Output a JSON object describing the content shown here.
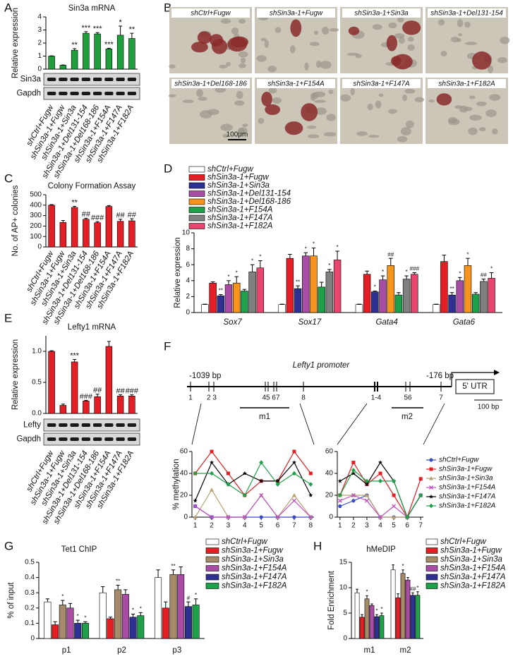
{
  "panel_letters": [
    "A",
    "B",
    "C",
    "D",
    "E",
    "F",
    "G",
    "H"
  ],
  "micrographs": {
    "labels": [
      "shCtrl+Fugw",
      "shSin3a-1+Fugw",
      "shSin3a-1+Sin3a",
      "shSin3a-1+Del131-154",
      "shSin3a-1+Del168-186",
      "shSin3a-1+F154A",
      "shSin3a-1+F147A",
      "shSin3a-1+F182A"
    ],
    "scale_bar": "100μm"
  },
  "blots": [
    {
      "labels": [
        "Sin3a",
        "Gapdh"
      ]
    },
    {
      "labels": [
        "Lefty",
        "Gapdh"
      ]
    }
  ],
  "promoter": {
    "start": "-1039 bp",
    "name": "Lefty1 promoter",
    "end": "-176 bp",
    "utr": "5' UTR",
    "sites": [
      "1",
      "2 3",
      "45 67",
      "8",
      "1-4",
      "56",
      "7"
    ],
    "regions": [
      "m1",
      "m2"
    ],
    "scale": "100 bp"
  },
  "chart_data": [
    {
      "type": "bar",
      "title": "Sin3a mRNA",
      "ylabel": "Relative expression",
      "categories": [
        "shCtrl+Fugw",
        "shSin3a-1+Fugw",
        "shSin3a-1+Sin3a",
        "shSin3a-1+Del131-154",
        "shSin3a-1+Del168-186",
        "shSin3a-1+F154A",
        "shSin3a-1+F147A",
        "shSin3a-1+F182A"
      ],
      "values": [
        1,
        0.3,
        1.45,
        2.75,
        2.7,
        1.55,
        2.6,
        2.35
      ],
      "errors": [
        0.02,
        0.02,
        0.12,
        0.12,
        0.1,
        0.05,
        0.7,
        0.4
      ],
      "sig_labels": [
        null,
        null,
        "**",
        "***",
        "***",
        "***",
        "*",
        "**"
      ],
      "color": "#1f9e3c",
      "ylim": [
        0,
        4
      ],
      "yticks": [
        0,
        1,
        2,
        3,
        4
      ]
    },
    {
      "type": "bar",
      "title": "Colony Formation Assay",
      "ylabel": "No. of AP+ colonies",
      "categories": [
        "shCtrl+Fugw",
        "shSin3a-1+Fugw",
        "shSin3a-1+Sin3a",
        "shSin3a-1+Del131-154",
        "shSin3a-1+Del168-186",
        "shSin3a-1+F154A",
        "shSin3a-1+F147A",
        "shSin3a-1+F182A"
      ],
      "values": [
        400,
        235,
        378,
        265,
        232,
        388,
        245,
        250
      ],
      "errors": [
        5,
        18,
        10,
        10,
        10,
        8,
        20,
        20
      ],
      "sig_labels": [
        null,
        null,
        "**",
        "##",
        "###",
        null,
        "##",
        "##"
      ],
      "color": "#e31e24",
      "ylim": [
        0,
        500
      ],
      "yticks": [
        0,
        100,
        200,
        300,
        400,
        500
      ]
    },
    {
      "type": "bar",
      "ylabel": "Relative expression",
      "categories": [
        "Sox7",
        "Sox17",
        "Gata4",
        "Gata6"
      ],
      "series": [
        {
          "name": "shCtrl+Fugw",
          "color": "#ffffff",
          "values": [
            1,
            1,
            1,
            1
          ],
          "errors": [
            0.05,
            0.05,
            0.05,
            0.05
          ],
          "sig_labels": [
            null,
            null,
            null,
            null
          ]
        },
        {
          "name": "shSin3a-1+Fugw",
          "color": "#e31e24",
          "values": [
            3.7,
            6.8,
            4.8,
            6.4
          ],
          "errors": [
            0.15,
            0.5,
            0.4,
            0.8
          ],
          "sig_labels": [
            null,
            null,
            null,
            null
          ]
        },
        {
          "name": "shSin3a-1+Sin3a",
          "color": "#2e3192",
          "values": [
            2.1,
            3.0,
            2.6,
            2.2
          ],
          "errors": [
            0.15,
            0.35,
            0.1,
            0.3
          ],
          "sig_labels": [
            "**",
            "**",
            "*",
            "**"
          ]
        },
        {
          "name": "shSin3a-1+Del131-154",
          "color": "#a94ca3",
          "values": [
            3.5,
            7.1,
            4.1,
            4.0
          ],
          "errors": [
            0.5,
            0.4,
            0.5,
            0.4
          ],
          "sig_labels": [
            "*",
            "*",
            "*",
            "*"
          ]
        },
        {
          "name": "shSin3a-1+Del168-186",
          "color": "#f7941d",
          "values": [
            3.7,
            7.1,
            5.9,
            5.9
          ],
          "errors": [
            0.8,
            1.0,
            0.9,
            0.9
          ],
          "sig_labels": [
            "*",
            "*",
            "##",
            "*"
          ]
        },
        {
          "name": "shSin3a-1+F154A",
          "color": "#1fa04a",
          "values": [
            2.7,
            3.2,
            2.2,
            2.3
          ],
          "errors": [
            0.2,
            0.6,
            0.3,
            0.2
          ],
          "sig_labels": [
            null,
            null,
            null,
            null
          ]
        },
        {
          "name": "shSin3a-1+F147A",
          "color": "#808080",
          "values": [
            5.1,
            5.1,
            4.2,
            3.9
          ],
          "errors": [
            0.9,
            0.3,
            0.4,
            0.3
          ],
          "sig_labels": [
            "*",
            "*",
            "*",
            "##"
          ]
        },
        {
          "name": "shSin3a-1+F182A",
          "color": "#e8466e",
          "values": [
            5.6,
            6.6,
            4.8,
            4.3
          ],
          "errors": [
            0.9,
            1.1,
            0.2,
            0.7
          ],
          "sig_labels": [
            "*",
            "*",
            "###",
            "*"
          ]
        }
      ],
      "ylim": [
        0,
        10
      ],
      "yticks": [
        0,
        2,
        4,
        6,
        8,
        10
      ]
    },
    {
      "type": "bar",
      "title": "Lefty1 mRNA",
      "ylabel": "Relative expression",
      "categories": [
        "shCtrl+Fugw",
        "shSin3a-1+Fugw",
        "shSin3a-1+Sin3a",
        "shSin3a-1+Del131-154",
        "shSin3a-1+Del168-186",
        "shSin3a-1+F154A",
        "shSin3a-1+F147A",
        "shSin3a-1+F182A"
      ],
      "values": [
        1.0,
        0.13,
        0.83,
        0.2,
        0.27,
        1.08,
        0.28,
        0.28
      ],
      "errors": [
        0.01,
        0.02,
        0.04,
        0.01,
        0.04,
        0.08,
        0.02,
        0.02
      ],
      "sig_labels": [
        null,
        null,
        "***",
        "###",
        "##",
        null,
        "##",
        "###"
      ],
      "color": "#e31e24",
      "ylim": [
        0,
        1.25
      ],
      "yticks": [
        {
          "value": 0,
          "label": "0.0"
        },
        {
          "value": 0.5,
          "label": "0.5"
        },
        {
          "value": 1,
          "label": "1.0"
        }
      ]
    },
    {
      "type": "line",
      "ylabel": "% methylation",
      "subplots": [
        {
          "x": [
            1,
            2,
            3,
            4,
            5,
            6,
            7,
            8
          ],
          "xticks": [
            1,
            2,
            3,
            4,
            5,
            6,
            7,
            8
          ],
          "xlim": [
            0.8,
            8.2
          ]
        },
        {
          "x": [
            1,
            2,
            3,
            4,
            5,
            6,
            7
          ],
          "xticks": [
            1,
            2,
            3,
            4,
            5,
            6,
            7
          ],
          "xlim": [
            0.8,
            7.2
          ]
        }
      ],
      "series": [
        {
          "name": "shCtrl+Fugw",
          "color": "#3b4cc0",
          "marker": "circle",
          "values": [
            [
              10,
              0,
              0,
              0,
              0,
              0,
              0,
              0
            ],
            [
              10,
              15,
              20,
              0,
              0,
              0,
              20
            ]
          ]
        },
        {
          "name": "shSin3a-1+Fugw",
          "color": "#e31e24",
          "marker": "square",
          "values": [
            [
              40,
              60,
              40,
              20,
              33,
              33,
              60,
              40
            ],
            [
              20,
              50,
              30,
              40,
              20,
              0,
              35
            ]
          ]
        },
        {
          "name": "shSin3a-1+Sin3a",
          "color": "#b8a070",
          "marker": "triangle",
          "values": [
            [
              0,
              25,
              0,
              0,
              20,
              0,
              20,
              0
            ],
            [
              20,
              20,
              20,
              0,
              0,
              0,
              20
            ]
          ]
        },
        {
          "name": "shSin3a-1+F154A",
          "color": "#c050c0",
          "marker": "x",
          "values": [
            [
              10,
              0,
              0,
              0,
              20,
              0,
              15,
              0
            ],
            [
              15,
              20,
              15,
              0,
              10,
              0,
              20
            ]
          ]
        },
        {
          "name": "shSin3a-1+F147A",
          "color": "#000000",
          "marker": "star",
          "values": [
            [
              15,
              50,
              30,
              40,
              33,
              33,
              50,
              20
            ],
            [
              33,
              40,
              30,
              50,
              33,
              0,
              20
            ]
          ]
        },
        {
          "name": "shSin3a-1+F182A",
          "color": "#1fa04a",
          "marker": "diamond",
          "values": [
            [
              40,
              40,
              30,
              20,
              50,
              30,
              40,
              30
            ],
            [
              20,
              43,
              33,
              33,
              33,
              0,
              20
            ]
          ]
        }
      ],
      "ylim": [
        0,
        60
      ],
      "yticks": [
        0,
        20,
        40,
        60
      ]
    },
    {
      "type": "bar",
      "title": "Tet1 ChIP",
      "ylabel": "% of input",
      "categories": [
        "p1",
        "p2",
        "p3"
      ],
      "series": [
        {
          "name": "shCtrl+Fugw",
          "color": "#ffffff",
          "values": [
            0.24,
            0.3,
            0.4
          ],
          "errors": [
            0.02,
            0.04,
            0.05
          ],
          "sig_labels": [
            null,
            null,
            null
          ]
        },
        {
          "name": "shSin3a-1+Fugw",
          "color": "#e31e24",
          "values": [
            0.09,
            0.13,
            0.2
          ],
          "errors": [
            0.02,
            0.01,
            0.04
          ],
          "sig_labels": [
            null,
            null,
            null
          ]
        },
        {
          "name": "shSin3a-1+Sin3a",
          "color": "#a58b6a",
          "values": [
            0.22,
            0.32,
            0.42
          ],
          "errors": [
            0.03,
            0.03,
            0.03
          ],
          "sig_labels": [
            "*",
            "**",
            "**"
          ]
        },
        {
          "name": "shSin3a-1+F154A",
          "color": "#a94ca3",
          "values": [
            0.2,
            0.29,
            0.42
          ],
          "errors": [
            0.03,
            0.03,
            0.05
          ],
          "sig_labels": [
            null,
            null,
            null
          ]
        },
        {
          "name": "shSin3a-1+F147A",
          "color": "#2e3192",
          "values": [
            0.1,
            0.14,
            0.21
          ],
          "errors": [
            0.02,
            0.02,
            0.03
          ],
          "sig_labels": [
            "*",
            "*",
            "#"
          ]
        },
        {
          "name": "shSin3a-1+F182A",
          "color": "#1fa04a",
          "values": [
            0.1,
            0.15,
            0.22
          ],
          "errors": [
            0.01,
            0.02,
            0.04
          ],
          "sig_labels": [
            "*",
            "*",
            "*"
          ]
        }
      ],
      "ylim": [
        0,
        0.5
      ],
      "yticks": [
        0,
        0.1,
        0.2,
        0.3,
        0.4,
        0.5
      ]
    },
    {
      "type": "bar",
      "title": "hMeDIP",
      "ylabel": "Fold Enrichment",
      "categories": [
        "m1",
        "m2"
      ],
      "series": [
        {
          "name": "shCtrl+Fugw",
          "color": "#ffffff",
          "values": [
            9,
            13.5
          ],
          "errors": [
            0.7,
            1
          ],
          "sig_labels": [
            null,
            null
          ]
        },
        {
          "name": "shSin3a-1+Fugw",
          "color": "#e31e24",
          "values": [
            4.2,
            8
          ],
          "errors": [
            0.5,
            0.8
          ],
          "sig_labels": [
            null,
            null
          ]
        },
        {
          "name": "shSin3a-1+Sin3a",
          "color": "#a58b6a",
          "values": [
            7.8,
            12.8
          ],
          "errors": [
            0.6,
            0.7
          ],
          "sig_labels": [
            "*",
            "*"
          ]
        },
        {
          "name": "shSin3a-1+F154A",
          "color": "#a94ca3",
          "values": [
            6.5,
            11.5
          ],
          "errors": [
            0.3,
            0.5
          ],
          "sig_labels": [
            null,
            null
          ]
        },
        {
          "name": "shSin3a-1+F147A",
          "color": "#2e3192",
          "values": [
            4.3,
            8.5
          ],
          "errors": [
            0.4,
            0.5
          ],
          "sig_labels": [
            "*",
            "##"
          ]
        },
        {
          "name": "shSin3a-1+F182A",
          "color": "#1fa04a",
          "values": [
            4.5,
            8.5
          ],
          "errors": [
            0.5,
            0.7
          ],
          "sig_labels": [
            "*",
            "*"
          ]
        }
      ],
      "ylim": [
        0,
        15
      ],
      "yticks": [
        0,
        5,
        10,
        15
      ]
    }
  ]
}
